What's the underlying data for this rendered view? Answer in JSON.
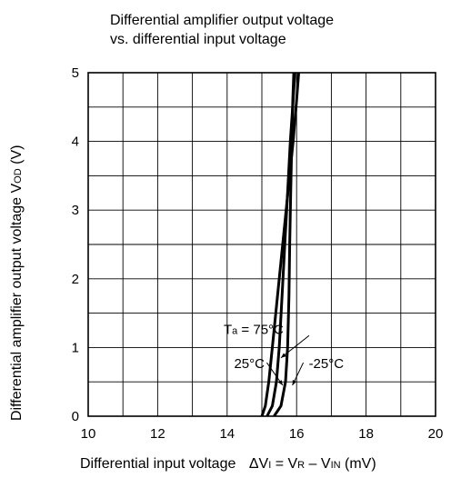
{
  "chart_data": {
    "type": "line",
    "title_line1": "Differential amplifier output voltage",
    "title_line2": "vs. differential input voltage",
    "xlabel": {
      "text": "Differential input  voltage",
      "formula_delta": "ΔV",
      "formula_sub1": "I",
      "formula_eq": " = V",
      "formula_sub2": "R",
      "formula_minus": " – V",
      "formula_sub3": "IN",
      "formula_unit": " (mV)"
    },
    "ylabel": {
      "text": "Differential amplifier output voltage V",
      "sub": "OD",
      "unit": " (V)"
    },
    "xlim": [
      10,
      20
    ],
    "ylim": [
      0,
      5
    ],
    "x_ticks": [
      "10",
      "12",
      "14",
      "16",
      "18",
      "20"
    ],
    "y_ticks": [
      "0",
      "1",
      "2",
      "3",
      "4",
      "5"
    ],
    "grid": true,
    "series": [
      {
        "name": "Ta = 75°C",
        "x": [
          15.0,
          15.1,
          15.2,
          15.3,
          15.45,
          15.6,
          15.75,
          15.9,
          16.0,
          16.06
        ],
        "y": [
          0.0,
          0.15,
          0.5,
          1.0,
          1.75,
          2.5,
          3.25,
          4.0,
          4.6,
          5.0
        ]
      },
      {
        "name": "25°C",
        "x": [
          15.15,
          15.3,
          15.42,
          15.5,
          15.58,
          15.66,
          15.74,
          15.82,
          15.9,
          15.95
        ],
        "y": [
          0.0,
          0.15,
          0.5,
          1.0,
          1.75,
          2.5,
          3.25,
          4.0,
          4.6,
          5.0
        ]
      },
      {
        "name": "-25°C",
        "x": [
          15.35,
          15.55,
          15.68,
          15.74,
          15.78,
          15.8,
          15.83,
          15.86,
          15.89,
          15.92
        ],
        "y": [
          0.0,
          0.15,
          0.5,
          1.0,
          1.75,
          2.5,
          3.25,
          4.0,
          4.6,
          5.0
        ]
      }
    ],
    "annotations": [
      {
        "label_main": "T",
        "label_sub": "a",
        "label_rest": " = 75°C",
        "x": 13.9,
        "y": 1.2,
        "target_x": 15.55,
        "target_y": 0.85
      },
      {
        "label_main": "25°C",
        "x": 14.2,
        "y": 0.7,
        "target_x": 15.6,
        "target_y": 0.45
      },
      {
        "label_main": "-25°C",
        "x": 16.35,
        "y": 0.7,
        "target_x": 15.88,
        "target_y": 0.45
      }
    ]
  }
}
